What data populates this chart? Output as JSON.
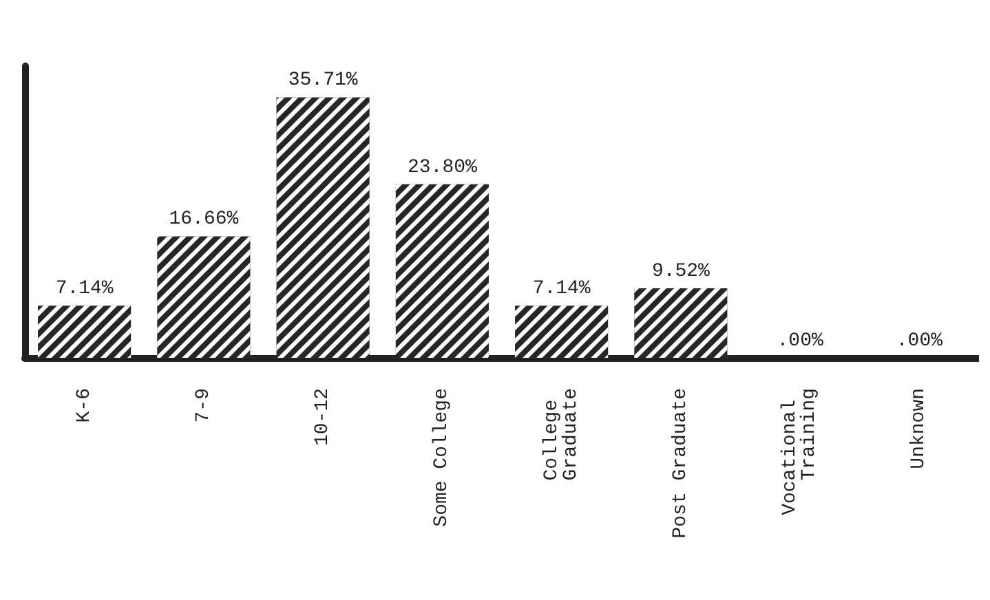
{
  "chart_data": {
    "type": "bar",
    "categories": [
      "K-6",
      "7-9",
      "10-12",
      "Some College",
      "College Graduate",
      "Post Graduate",
      "Vocational Training",
      "Unknown"
    ],
    "values": [
      7.14,
      16.66,
      35.71,
      23.8,
      7.14,
      9.52,
      0,
      0
    ],
    "value_labels": [
      "7.14%",
      "16.66%",
      "35.71%",
      "23.80%",
      "7.14%",
      "9.52%",
      ".00%",
      ".00%"
    ],
    "color": "#262626",
    "grid": false,
    "tick_labels": "x"
  }
}
